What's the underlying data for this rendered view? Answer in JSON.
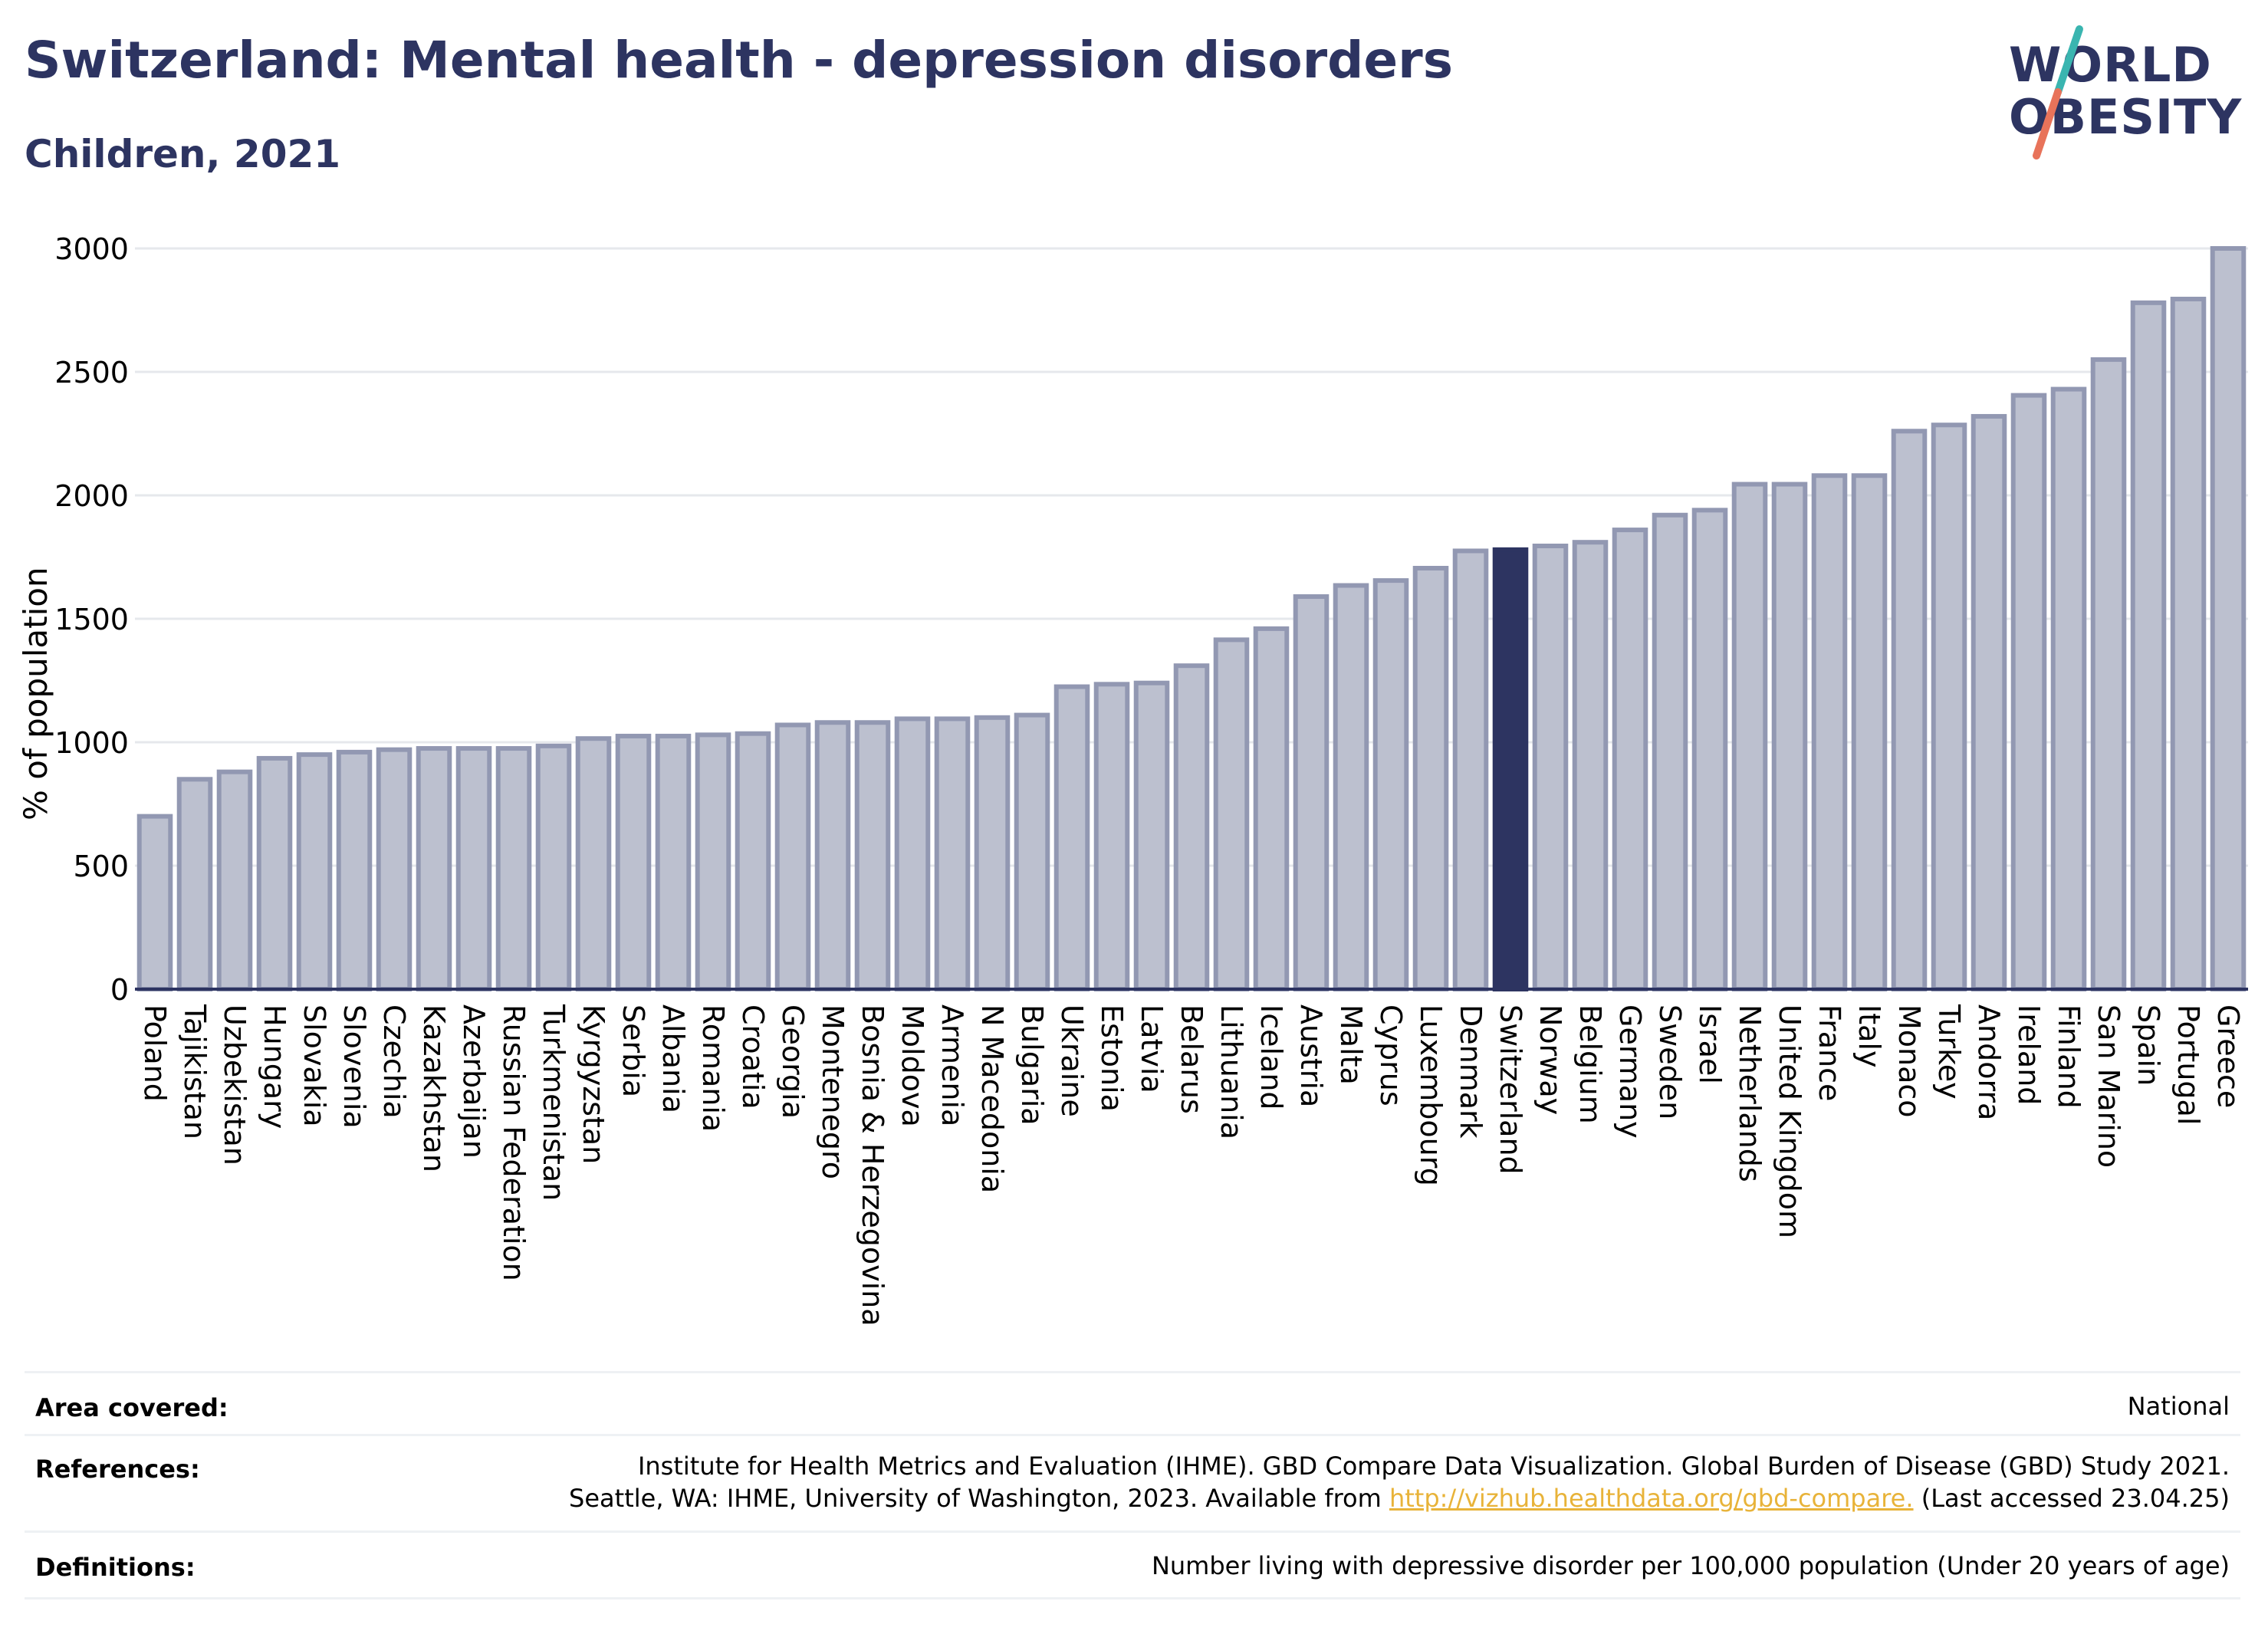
{
  "header": {
    "title": "Switzerland: Mental health - depression disorders",
    "subtitle": "Children, 2021"
  },
  "logo": {
    "line1": "WORLD",
    "line2": "OBESITY",
    "colors": {
      "text": "#2d3461",
      "slash_top": "#3ab5b0",
      "slash_bottom": "#e8735a"
    }
  },
  "colors": {
    "bar": "#bcc0cf",
    "bar_border": "#9298b2",
    "highlight": "#2d3461",
    "grid": "#e6e8ec",
    "axis": "#2d3461",
    "link": "#e8b339"
  },
  "chart_data": {
    "type": "bar",
    "title": "Switzerland: Mental health - depression disorders",
    "subtitle": "Children, 2021",
    "ylabel": "% of population",
    "xlabel": "",
    "ylim": [
      0,
      3000
    ],
    "yticks": [
      0,
      500,
      1000,
      1500,
      2000,
      2500,
      3000
    ],
    "grid": true,
    "highlight": "Switzerland",
    "categories": [
      "Poland",
      "Tajikistan",
      "Uzbekistan",
      "Hungary",
      "Slovakia",
      "Slovenia",
      "Czechia",
      "Kazakhstan",
      "Azerbaijan",
      "Russian Federation",
      "Turkmenistan",
      "Kyrgyzstan",
      "Serbia",
      "Albania",
      "Romania",
      "Croatia",
      "Georgia",
      "Montenegro",
      "Bosnia & Herzegovina",
      "Moldova",
      "Armenia",
      "N Macedonia",
      "Bulgaria",
      "Ukraine",
      "Estonia",
      "Latvia",
      "Belarus",
      "Lithuania",
      "Iceland",
      "Austria",
      "Malta",
      "Cyprus",
      "Luxembourg",
      "Denmark",
      "Switzerland",
      "Norway",
      "Belgium",
      "Germany",
      "Sweden",
      "Israel",
      "Netherlands",
      "United Kingdom",
      "France",
      "Italy",
      "Monaco",
      "Turkey",
      "Andorra",
      "Ireland",
      "Finland",
      "San Marino",
      "Spain",
      "Portugal",
      "Greece"
    ],
    "values": [
      700,
      850,
      880,
      935,
      950,
      960,
      970,
      975,
      975,
      975,
      985,
      1015,
      1025,
      1025,
      1030,
      1035,
      1070,
      1080,
      1080,
      1095,
      1095,
      1100,
      1110,
      1225,
      1235,
      1240,
      1310,
      1415,
      1460,
      1590,
      1635,
      1655,
      1705,
      1775,
      1780,
      1795,
      1810,
      1860,
      1920,
      1940,
      2045,
      2045,
      2080,
      2080,
      2260,
      2285,
      2320,
      2405,
      2430,
      2550,
      2780,
      2795,
      3000
    ]
  },
  "footer": {
    "area_label": "Area covered:",
    "area_value": "National",
    "references_label": "References:",
    "references_line1": "Institute for Health Metrics and Evaluation (IHME). GBD Compare Data Visualization. Global Burden of Disease (GBD) Study 2021.",
    "references_line2_pre": "Seattle, WA: IHME, University of Washington, 2023. Available from ",
    "references_link": "http://vizhub.healthdata.org/gbd-compare.",
    "references_line2_post": " (Last accessed 23.04.25)",
    "definitions_label": "Definitions:",
    "definitions_value": "Number living with depressive disorder per 100,000 population (Under 20 years of age)"
  }
}
